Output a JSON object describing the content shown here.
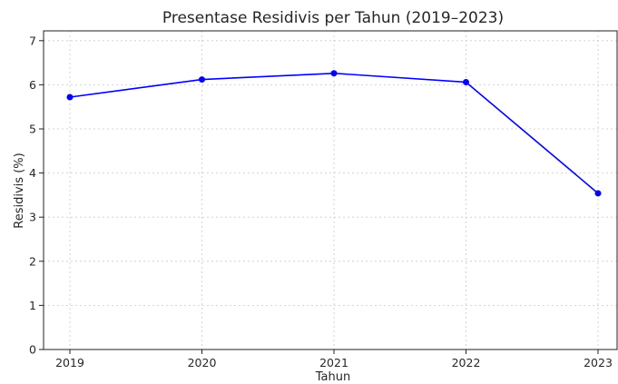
{
  "chart_data": {
    "type": "line",
    "title": "Presentase Residivis per Tahun (2019–2023)",
    "xlabel": "Tahun",
    "ylabel": "Residivis (%)",
    "categories": [
      "2019",
      "2020",
      "2021",
      "2022",
      "2023"
    ],
    "series": [
      {
        "values": [
          5.72,
          6.12,
          6.26,
          6.06,
          3.54
        ],
        "color": "#0000ff"
      }
    ],
    "yticks": [
      "0",
      "1",
      "2",
      "3",
      "4",
      "5",
      "6",
      "7"
    ],
    "ylim": [
      0,
      7.2
    ],
    "grid": true,
    "legend": "none"
  }
}
